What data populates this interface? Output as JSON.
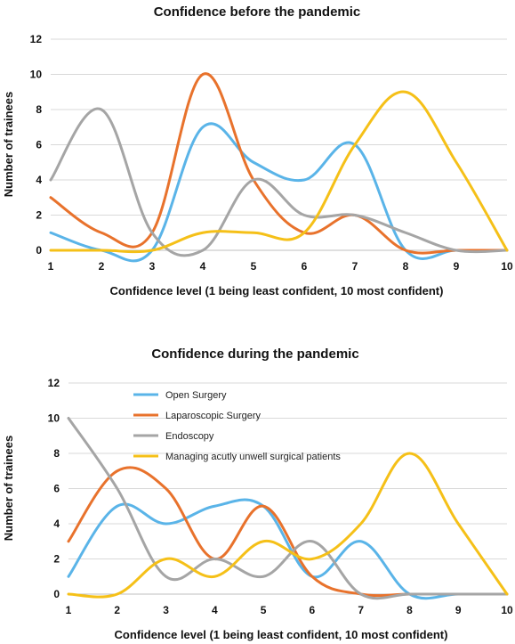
{
  "chart_data": [
    {
      "type": "line",
      "title": "Confidence before the pandemic",
      "xlabel": "Confidence level (1 being least confident, 10 most confident)",
      "ylabel": "Number of trainees",
      "xlim": [
        1,
        10
      ],
      "ylim": [
        0,
        12
      ],
      "x_ticks": [
        "1",
        "2",
        "3",
        "4",
        "5",
        "6",
        "7",
        "8",
        "9",
        "10"
      ],
      "y_ticks": [
        "0",
        "2",
        "4",
        "6",
        "8",
        "10",
        "12"
      ],
      "grid": "horizontal",
      "legend": "none",
      "x": [
        1,
        2,
        3,
        4,
        5,
        6,
        7,
        8,
        9,
        10
      ],
      "series": [
        {
          "color": "#5ab4e8",
          "values": [
            1,
            0,
            0,
            7,
            5,
            4,
            6,
            0,
            0,
            0
          ]
        },
        {
          "color": "#e8722c",
          "values": [
            3,
            1,
            1,
            10,
            4,
            1,
            2,
            0,
            0,
            0
          ]
        },
        {
          "color": "#a5a5a5",
          "values": [
            4,
            8,
            1,
            0,
            4,
            2,
            2,
            1,
            0,
            0
          ]
        },
        {
          "color": "#f5c018",
          "values": [
            0,
            0,
            0,
            1,
            1,
            1,
            6,
            9,
            5,
            0
          ]
        }
      ]
    },
    {
      "type": "line",
      "title": "Confidence during the pandemic",
      "xlabel": "Confidence level (1 being least confident, 10 most confident)",
      "ylabel": "Number of trainees",
      "xlim": [
        1,
        10
      ],
      "ylim": [
        0,
        12
      ],
      "x_ticks": [
        "1",
        "2",
        "3",
        "4",
        "5",
        "6",
        "7",
        "8",
        "9",
        "10"
      ],
      "y_ticks": [
        "0",
        "2",
        "4",
        "6",
        "8",
        "10",
        "12"
      ],
      "grid": "horizontal",
      "legend": "top-left inside",
      "x": [
        1,
        2,
        3,
        4,
        5,
        6,
        7,
        8,
        9,
        10
      ],
      "series": [
        {
          "name": "Open Surgery",
          "color": "#5ab4e8",
          "values": [
            1,
            5,
            4,
            5,
            5,
            1,
            3,
            0,
            0,
            0
          ]
        },
        {
          "name": "Laparoscopic Surgery",
          "color": "#e8722c",
          "values": [
            3,
            7,
            6,
            2,
            5,
            1,
            0,
            0,
            0,
            0
          ]
        },
        {
          "name": "Endoscopy",
          "color": "#a5a5a5",
          "values": [
            10,
            6,
            1,
            2,
            1,
            3,
            0,
            0,
            0,
            0
          ]
        },
        {
          "name": "Managing acutly unwell surgical patients",
          "color": "#f5c018",
          "values": [
            0,
            0,
            2,
            1,
            3,
            2,
            4,
            8,
            4,
            0
          ]
        }
      ]
    }
  ]
}
